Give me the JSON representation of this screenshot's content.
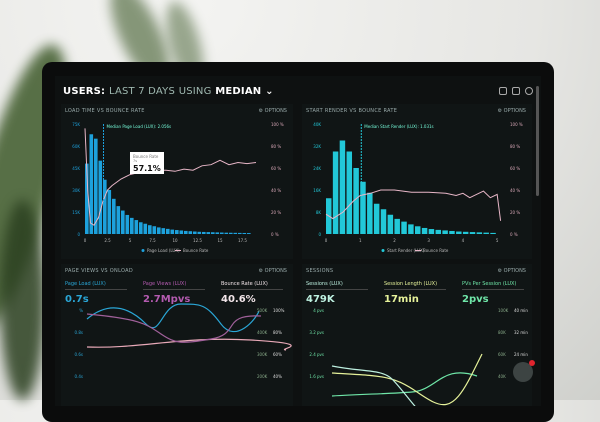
{
  "header": {
    "prefix": "USERS:",
    "range": "LAST 7 DAYS",
    "using": "USING",
    "stat": "MEDIAN",
    "chevron": "chevron-down-icon",
    "icons": [
      "monitor-icon",
      "chart-icon",
      "help-icon"
    ]
  },
  "options_label": "OPTIONS",
  "panels": {
    "load": {
      "title": "LOAD TIME VS BOUNCE RATE",
      "median_label": "Median Page Load (LUX): 2.056s",
      "tooltip": {
        "label": "Bounce Rate",
        "sub": "7s",
        "value": "57.1%"
      },
      "legend": [
        "Page Load (LUX)",
        "Bounce Rate"
      ]
    },
    "render": {
      "title": "START RENDER VS BOUNCE RATE",
      "median_label": "Median Start Render (LUX): 1.031s",
      "legend": [
        "Start Render (LUX)",
        "Bounce Rate"
      ]
    },
    "pageviews": {
      "title": "PAGE VIEWS VS ONLOAD",
      "kpis": [
        {
          "label": "Page Load (LUX)",
          "value": "0.7s",
          "color": "#2aa6d6"
        },
        {
          "label": "Page Views (LUX)",
          "value": "2.7Mpvs",
          "color": "#b45bb0"
        },
        {
          "label": "Bounce Rate (LUX)",
          "value": "40.6%",
          "color": "#f3e6ea"
        }
      ],
      "yleft": [
        "%",
        "0.8s",
        "0.6s",
        "0.4s"
      ],
      "yright1": [
        "500K",
        "400K",
        "300K",
        "200K"
      ],
      "yright2": [
        "100%",
        "80%",
        "60%",
        "40%"
      ]
    },
    "sessions": {
      "title": "SESSIONS",
      "kpis": [
        {
          "label": "Sessions (LUX)",
          "value": "479K",
          "color": "#bdf0e0"
        },
        {
          "label": "Session Length (LUX)",
          "value": "17min",
          "color": "#e6f29a"
        },
        {
          "label": "PVs Per Session (LUX)",
          "value": "2pvs",
          "color": "#6fe6a8"
        }
      ],
      "yleft": [
        "4 pvs",
        "3.2 pvs",
        "2.4 pvs",
        "1.6 pvs"
      ],
      "yright1": [
        "100K",
        "80K",
        "60K",
        "40K"
      ],
      "yright2": [
        "40 min",
        "32 min",
        "24 min"
      ]
    }
  },
  "chart_data": [
    {
      "type": "bar",
      "title": "LOAD TIME VS BOUNCE RATE",
      "x_ticks": [
        "0",
        "2.5",
        "5",
        "7.5",
        "10",
        "12.5",
        "15",
        "17.5"
      ],
      "y_ticks": [
        "0",
        "15K",
        "30K",
        "45K",
        "60K",
        "75K"
      ],
      "y2_ticks": [
        "0 %",
        "20 %",
        "40 %",
        "60 %",
        "80 %",
        "100 %"
      ],
      "ylim": [
        0,
        75000
      ],
      "xlim": [
        0,
        20
      ],
      "series": [
        {
          "name": "Page Load (LUX)",
          "x_step": 0.5,
          "values": [
            48000,
            68000,
            65000,
            50000,
            37000,
            30000,
            24000,
            19000,
            16000,
            13000,
            11000,
            9500,
            8000,
            7000,
            6000,
            5300,
            4500,
            4000,
            3500,
            3000,
            2700,
            2400,
            2100,
            1900,
            1700,
            1500,
            1400,
            1300,
            1200,
            1100,
            1000,
            900,
            850,
            800,
            750,
            700,
            650
          ]
        },
        {
          "name": "Bounce Rate",
          "x": [
            0,
            0.3,
            0.6,
            1,
            1.5,
            2,
            2.5,
            3,
            4,
            5,
            6,
            7,
            8,
            9,
            10,
            11,
            12,
            13,
            14,
            15,
            16,
            17,
            18,
            19
          ],
          "values": [
            96,
            40,
            10,
            8,
            15,
            30,
            40,
            44,
            50,
            54,
            56,
            57,
            58,
            58,
            57,
            59,
            58,
            62,
            63,
            67,
            63,
            65,
            64,
            65
          ]
        }
      ]
    },
    {
      "type": "bar",
      "title": "START RENDER VS BOUNCE RATE",
      "x_ticks": [
        "0",
        "1",
        "2",
        "3",
        "4",
        "5"
      ],
      "y_ticks": [
        "0",
        "8K",
        "16K",
        "24K",
        "32K",
        "40K"
      ],
      "y2_ticks": [
        "0 %",
        "20 %",
        "40 %",
        "60 %",
        "80 %",
        "100 %"
      ],
      "ylim": [
        0,
        40000
      ],
      "xlim": [
        0,
        5.2
      ],
      "series": [
        {
          "name": "Start Render (LUX)",
          "x_step": 0.2,
          "values": [
            13000,
            30000,
            34000,
            30000,
            24000,
            19000,
            15000,
            11000,
            9000,
            7000,
            5500,
            4500,
            3500,
            2800,
            2200,
            1800,
            1500,
            1300,
            1100,
            900,
            800,
            700,
            600,
            500,
            400
          ]
        },
        {
          "name": "Bounce Rate",
          "x": [
            0,
            0.2,
            0.5,
            0.8,
            1,
            1.3,
            1.6,
            2,
            2.5,
            3,
            3.5,
            3.8,
            4,
            4.2,
            4.6,
            4.8,
            5,
            5.1
          ],
          "values": [
            18,
            14,
            20,
            30,
            35,
            37,
            40,
            40,
            38,
            38,
            37,
            35,
            37,
            33,
            39,
            33,
            36,
            12
          ]
        }
      ]
    }
  ]
}
